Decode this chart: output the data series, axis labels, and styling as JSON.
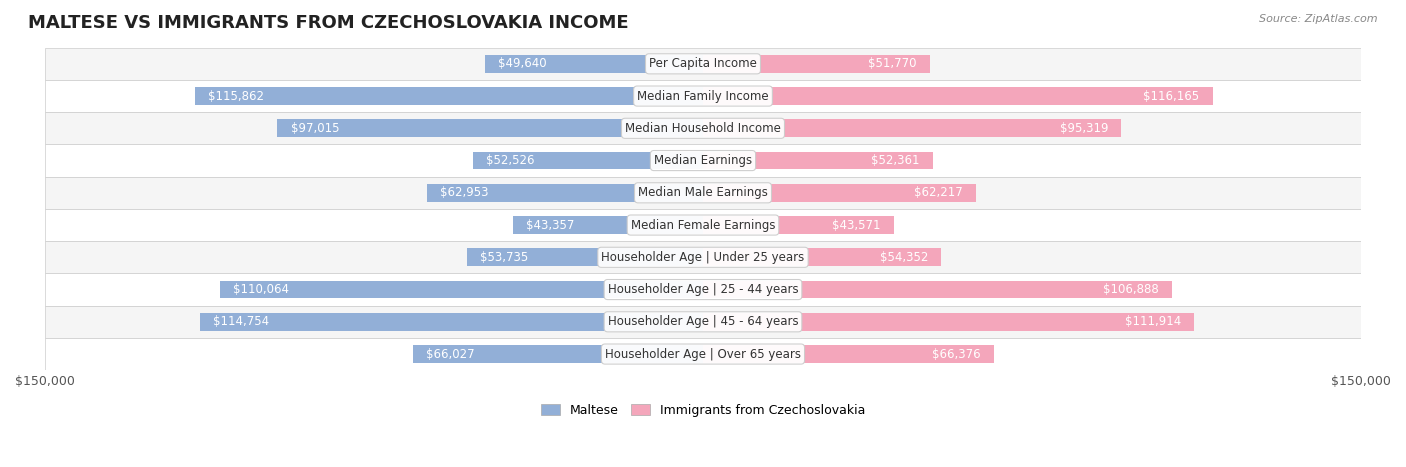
{
  "title": "MALTESE VS IMMIGRANTS FROM CZECHOSLOVAKIA INCOME",
  "source": "Source: ZipAtlas.com",
  "categories": [
    "Per Capita Income",
    "Median Family Income",
    "Median Household Income",
    "Median Earnings",
    "Median Male Earnings",
    "Median Female Earnings",
    "Householder Age | Under 25 years",
    "Householder Age | 25 - 44 years",
    "Householder Age | 45 - 64 years",
    "Householder Age | Over 65 years"
  ],
  "maltese_values": [
    49640,
    115862,
    97015,
    52526,
    62953,
    43357,
    53735,
    110064,
    114754,
    66027
  ],
  "czech_values": [
    51770,
    116165,
    95319,
    52361,
    62217,
    43571,
    54352,
    106888,
    111914,
    66376
  ],
  "maltese_labels": [
    "$49,640",
    "$115,862",
    "$97,015",
    "$52,526",
    "$62,953",
    "$43,357",
    "$53,735",
    "$110,064",
    "$114,754",
    "$66,027"
  ],
  "czech_labels": [
    "$51,770",
    "$116,165",
    "$95,319",
    "$52,361",
    "$62,217",
    "$43,571",
    "$54,352",
    "$106,888",
    "$111,914",
    "$66,376"
  ],
  "x_max": 150000,
  "x_label": "$150,000",
  "blue_color": "#92afd7",
  "pink_color": "#f4a6bb",
  "blue_dark": "#7b9cc9",
  "pink_dark": "#f08faa",
  "label_blue": "Maltese",
  "label_pink": "Immigrants from Czechoslovakia",
  "bg_row_light": "#f5f5f5",
  "bg_row_white": "#ffffff",
  "bar_height": 0.55,
  "title_fontsize": 13,
  "label_fontsize": 8.5,
  "cat_fontsize": 8.5,
  "source_fontsize": 8
}
